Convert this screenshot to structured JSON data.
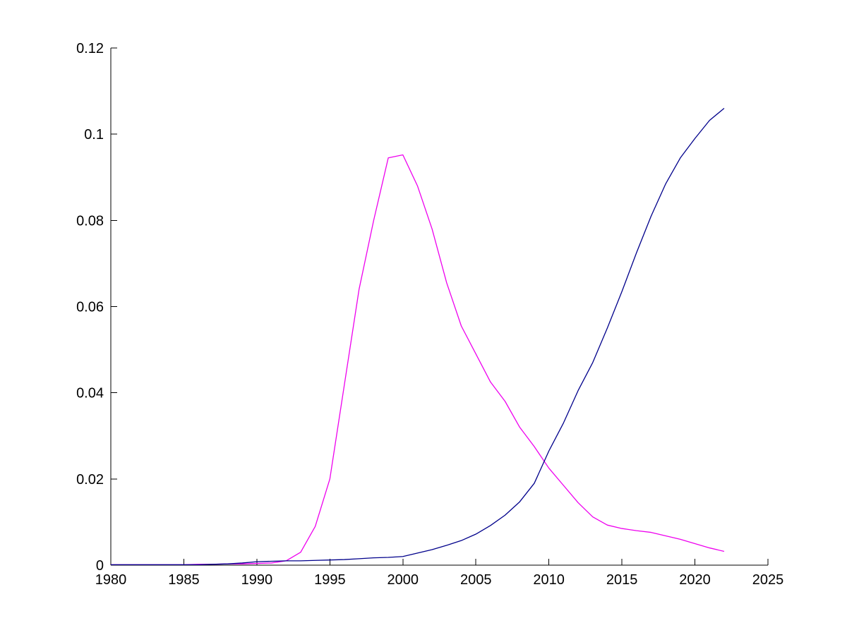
{
  "figure": {
    "background": "#ffffff",
    "axis_color": "#000000"
  },
  "chart_data": {
    "type": "line",
    "title": "",
    "xlabel": "",
    "ylabel": "",
    "grid": false,
    "legend": null,
    "xlim": [
      1980,
      2025
    ],
    "ylim": [
      0,
      0.12
    ],
    "x_ticks": [
      1980,
      1985,
      1990,
      1995,
      2000,
      2005,
      2010,
      2015,
      2020,
      2025
    ],
    "x_tick_labels": [
      "1980",
      "1985",
      "1990",
      "1995",
      "2000",
      "2005",
      "2010",
      "2015",
      "2020",
      "2025"
    ],
    "y_ticks": [
      0,
      0.02,
      0.04,
      0.06,
      0.08,
      0.1,
      0.12
    ],
    "y_tick_labels": [
      "0",
      "0.02",
      "0.04",
      "0.06",
      "0.08",
      "0.1",
      "0.12"
    ],
    "x": [
      1980,
      1981,
      1982,
      1983,
      1984,
      1985,
      1986,
      1987,
      1988,
      1989,
      1990,
      1991,
      1992,
      1993,
      1994,
      1995,
      1996,
      1997,
      1998,
      1999,
      2000,
      2001,
      2002,
      2003,
      2004,
      2005,
      2006,
      2007,
      2008,
      2009,
      2010,
      2011,
      2012,
      2013,
      2014,
      2015,
      2016,
      2017,
      2018,
      2019,
      2020,
      2021,
      2022
    ],
    "series": [
      {
        "name": "magenta-line",
        "color": "#EE00EE",
        "values": [
          0.0001,
          0.0001,
          0.0001,
          0.0001,
          0.0001,
          0.0001,
          0.0002,
          0.0002,
          0.0003,
          0.0003,
          0.0004,
          0.0005,
          0.001,
          0.003,
          0.009,
          0.02,
          0.042,
          0.064,
          0.08,
          0.0945,
          0.0952,
          0.088,
          0.078,
          0.0655,
          0.0555,
          0.049,
          0.0425,
          0.038,
          0.032,
          0.0275,
          0.0225,
          0.0185,
          0.0145,
          0.0112,
          0.0093,
          0.0085,
          0.008,
          0.0076,
          0.0068,
          0.006,
          0.005,
          0.004,
          0.0032
        ]
      },
      {
        "name": "blue-line",
        "color": "#00008B",
        "values": [
          0.0001,
          0.0001,
          0.0001,
          0.0001,
          0.0001,
          0.0001,
          0.0001,
          0.0002,
          0.0003,
          0.0005,
          0.0008,
          0.0009,
          0.001,
          0.001,
          0.0011,
          0.0012,
          0.0013,
          0.0015,
          0.0017,
          0.0018,
          0.002,
          0.0028,
          0.0036,
          0.0046,
          0.0057,
          0.0072,
          0.0092,
          0.0116,
          0.0147,
          0.019,
          0.0265,
          0.033,
          0.0405,
          0.047,
          0.055,
          0.0635,
          0.0725,
          0.081,
          0.0885,
          0.0945,
          0.099,
          0.1032,
          0.106
        ]
      }
    ]
  }
}
